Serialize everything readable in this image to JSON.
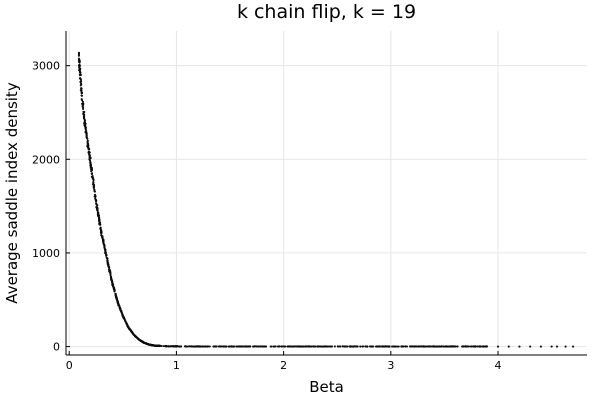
{
  "chart_data": {
    "type": "scatter",
    "title": "k chain flip, k = 19",
    "xlabel": "Beta",
    "ylabel": "Average saddle index density",
    "xlim": [
      -0.03,
      4.83
    ],
    "ylim": [
      -90,
      3370
    ],
    "xticks": [
      0,
      1,
      2,
      3,
      4
    ],
    "yticks": [
      0,
      1000,
      2000,
      3000
    ],
    "xtick_labels": [
      "0",
      "1",
      "2",
      "3",
      "4"
    ],
    "ytick_labels": [
      "0",
      "1000",
      "2000",
      "3000"
    ],
    "grid": true,
    "legend": "none",
    "marker_color": "#0d0d0d",
    "point_count": 1200,
    "x_range_dense": [
      0.09,
      3.9
    ],
    "x_sparse_points": [
      4.0,
      4.1,
      4.2,
      4.3,
      4.4,
      4.5,
      4.55,
      4.63,
      4.7
    ],
    "decay_curve": {
      "x": [
        0.09,
        0.12,
        0.15,
        0.2,
        0.25,
        0.3,
        0.35,
        0.4,
        0.45,
        0.5,
        0.55,
        0.6,
        0.65,
        0.7,
        0.75,
        0.8,
        0.9,
        1.0,
        1.2,
        1.5,
        2.0,
        3.0,
        4.7
      ],
      "y": [
        3100,
        2650,
        2350,
        1950,
        1550,
        1220,
        950,
        690,
        480,
        330,
        210,
        130,
        75,
        40,
        20,
        10,
        4,
        2,
        0,
        0,
        0,
        0,
        0
      ]
    }
  }
}
